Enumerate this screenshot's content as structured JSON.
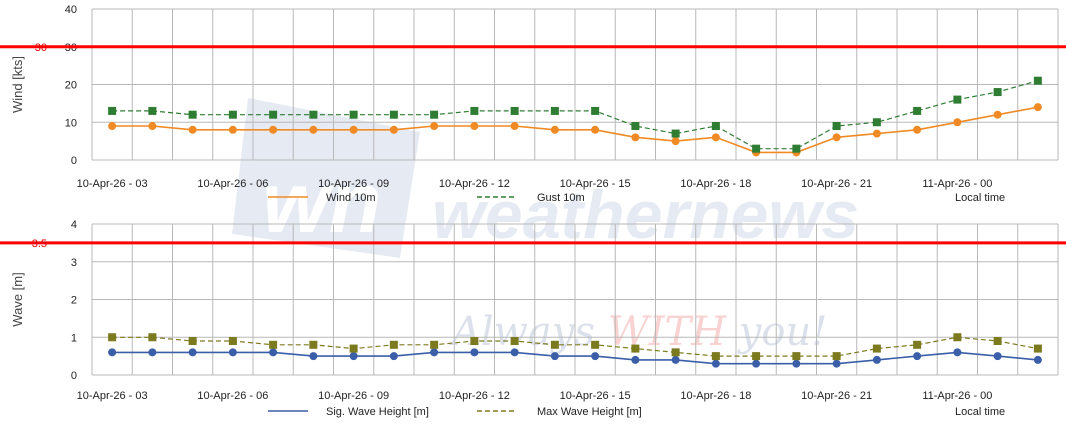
{
  "watermark": {
    "logo_text": "wn",
    "brand_text": "weathernews",
    "tagline_a": "Always ",
    "tagline_b": "WITH",
    "tagline_c": " you!"
  },
  "chart_data": [
    {
      "type": "line",
      "ylabel": "Wind [kts]",
      "ylim": [
        0,
        40
      ],
      "yticks": [
        0,
        10,
        20,
        30,
        40
      ],
      "threshold": {
        "value": 30,
        "label": "30",
        "color": "#ff0000"
      },
      "x_labels": [
        "10-Apr-26 - 03",
        "10-Apr-26 - 06",
        "10-Apr-26 - 09",
        "10-Apr-26 - 12",
        "10-Apr-26 - 15",
        "10-Apr-26 - 18",
        "10-Apr-26 - 21",
        "11-Apr-26 - 00"
      ],
      "x_note": "Local time",
      "series": [
        {
          "name": "Wind 10m",
          "color": "#f08a24",
          "style": "solid",
          "marker": "circle",
          "values": [
            9,
            9,
            8,
            8,
            8,
            8,
            8,
            8,
            9,
            9,
            9,
            8,
            8,
            6,
            5,
            6,
            2,
            2,
            6,
            7,
            8,
            10,
            12,
            14
          ]
        },
        {
          "name": "Gust 10m",
          "color": "#2e7d32",
          "style": "dashed",
          "marker": "square",
          "values": [
            13,
            13,
            12,
            12,
            12,
            12,
            12,
            12,
            12,
            13,
            13,
            13,
            13,
            9,
            7,
            9,
            3,
            3,
            9,
            10,
            13,
            16,
            18,
            21
          ]
        }
      ]
    },
    {
      "type": "line",
      "ylabel": "Wave [m]",
      "ylim": [
        0,
        4
      ],
      "yticks": [
        0,
        1,
        2,
        3,
        4
      ],
      "threshold": {
        "value": 3.5,
        "label": "3.5",
        "color": "#ff0000"
      },
      "x_labels": [
        "10-Apr-26 - 03",
        "10-Apr-26 - 06",
        "10-Apr-26 - 09",
        "10-Apr-26 - 12",
        "10-Apr-26 - 15",
        "10-Apr-26 - 18",
        "10-Apr-26 - 21",
        "11-Apr-26 - 00"
      ],
      "x_note": "Local time",
      "series": [
        {
          "name": "Sig. Wave Height [m]",
          "color": "#3a5ea8",
          "style": "solid",
          "marker": "circle",
          "values": [
            0.6,
            0.6,
            0.6,
            0.6,
            0.6,
            0.5,
            0.5,
            0.5,
            0.6,
            0.6,
            0.6,
            0.5,
            0.5,
            0.4,
            0.4,
            0.3,
            0.3,
            0.3,
            0.3,
            0.4,
            0.5,
            0.6,
            0.5,
            0.4
          ]
        },
        {
          "name": "Max Wave Height [m]",
          "color": "#7c7a1e",
          "style": "dashed",
          "marker": "square",
          "values": [
            1.0,
            1.0,
            0.9,
            0.9,
            0.8,
            0.8,
            0.7,
            0.8,
            0.8,
            0.9,
            0.9,
            0.8,
            0.8,
            0.7,
            0.6,
            0.5,
            0.5,
            0.5,
            0.5,
            0.7,
            0.8,
            1.0,
            0.9,
            0.7
          ]
        }
      ]
    }
  ]
}
